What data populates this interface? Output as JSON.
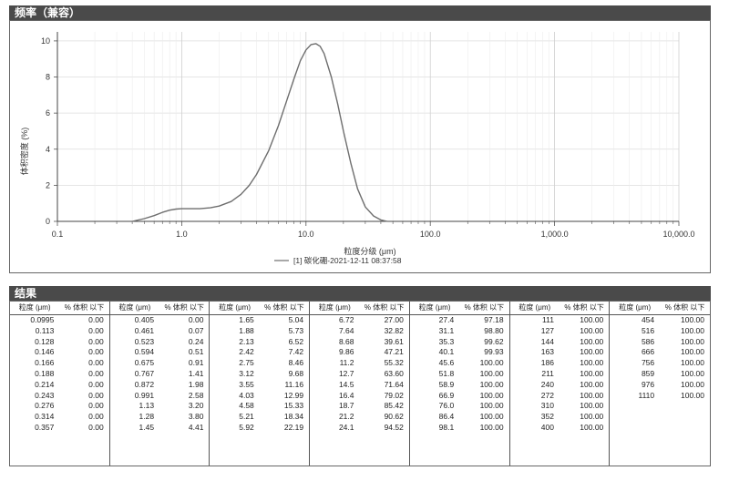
{
  "header_frequency": "频率（兼容）",
  "header_results": "结果",
  "chart_data": {
    "type": "line",
    "title": "",
    "xlabel": "粒度分级 (μm)",
    "ylabel": "体积密度 (%)",
    "xscale": "log",
    "xlim": [
      0.1,
      10000
    ],
    "ylim": [
      0,
      10.5
    ],
    "x_ticks": [
      "0.1",
      "1.0",
      "10.0",
      "100.0",
      "1,000.0",
      "10,000.0"
    ],
    "y_ticks": [
      "0",
      "2",
      "4",
      "6",
      "8",
      "10"
    ],
    "grid": true,
    "legend_position": "bottom-center",
    "series": [
      {
        "name": "[1] 碳化硼-2021-12-11 08:37:58",
        "color": "#6e6e6e",
        "x": [
          0.4,
          0.5,
          0.6,
          0.7,
          0.8,
          0.9,
          1.0,
          1.2,
          1.4,
          1.7,
          2.0,
          2.5,
          3.0,
          3.5,
          4.0,
          5.0,
          6.0,
          7.0,
          8.0,
          9.0,
          10.0,
          11.0,
          12.0,
          13.0,
          14.0,
          16.0,
          18.0,
          20.0,
          23.0,
          26.0,
          30.0,
          35.0,
          40.0,
          45.0
        ],
        "y": [
          0.0,
          0.15,
          0.32,
          0.5,
          0.62,
          0.68,
          0.7,
          0.7,
          0.7,
          0.75,
          0.85,
          1.1,
          1.5,
          2.0,
          2.6,
          3.9,
          5.3,
          6.7,
          7.9,
          8.9,
          9.5,
          9.8,
          9.85,
          9.7,
          9.3,
          8.0,
          6.5,
          5.0,
          3.2,
          1.8,
          0.8,
          0.3,
          0.08,
          0.0
        ]
      }
    ]
  },
  "table": {
    "col_header_size": "粒度 (μm)",
    "col_header_pct": "% 体积 以下",
    "columns": [
      [
        [
          "0.0995",
          "0.00"
        ],
        [
          "0.113",
          "0.00"
        ],
        [
          "0.128",
          "0.00"
        ],
        [
          "0.146",
          "0.00"
        ],
        [
          "0.166",
          "0.00"
        ],
        [
          "0.188",
          "0.00"
        ],
        [
          "0.214",
          "0.00"
        ],
        [
          "0.243",
          "0.00"
        ],
        [
          "0.276",
          "0.00"
        ],
        [
          "0.314",
          "0.00"
        ],
        [
          "0.357",
          "0.00"
        ]
      ],
      [
        [
          "0.405",
          "0.00"
        ],
        [
          "0.461",
          "0.07"
        ],
        [
          "0.523",
          "0.24"
        ],
        [
          "0.594",
          "0.51"
        ],
        [
          "0.675",
          "0.91"
        ],
        [
          "0.767",
          "1.41"
        ],
        [
          "0.872",
          "1.98"
        ],
        [
          "0.991",
          "2.58"
        ],
        [
          "1.13",
          "3.20"
        ],
        [
          "1.28",
          "3.80"
        ],
        [
          "1.45",
          "4.41"
        ]
      ],
      [
        [
          "1.65",
          "5.04"
        ],
        [
          "1.88",
          "5.73"
        ],
        [
          "2.13",
          "6.52"
        ],
        [
          "2.42",
          "7.42"
        ],
        [
          "2.75",
          "8.46"
        ],
        [
          "3.12",
          "9.68"
        ],
        [
          "3.55",
          "11.16"
        ],
        [
          "4.03",
          "12.99"
        ],
        [
          "4.58",
          "15.33"
        ],
        [
          "5.21",
          "18.34"
        ],
        [
          "5.92",
          "22.19"
        ]
      ],
      [
        [
          "6.72",
          "27.00"
        ],
        [
          "7.64",
          "32.82"
        ],
        [
          "8.68",
          "39.61"
        ],
        [
          "9.86",
          "47.21"
        ],
        [
          "11.2",
          "55.32"
        ],
        [
          "12.7",
          "63.60"
        ],
        [
          "14.5",
          "71.64"
        ],
        [
          "16.4",
          "79.02"
        ],
        [
          "18.7",
          "85.42"
        ],
        [
          "21.2",
          "90.62"
        ],
        [
          "24.1",
          "94.52"
        ]
      ],
      [
        [
          "27.4",
          "97.18"
        ],
        [
          "31.1",
          "98.80"
        ],
        [
          "35.3",
          "99.62"
        ],
        [
          "40.1",
          "99.93"
        ],
        [
          "45.6",
          "100.00"
        ],
        [
          "51.8",
          "100.00"
        ],
        [
          "58.9",
          "100.00"
        ],
        [
          "66.9",
          "100.00"
        ],
        [
          "76.0",
          "100.00"
        ],
        [
          "86.4",
          "100.00"
        ],
        [
          "98.1",
          "100.00"
        ]
      ],
      [
        [
          "111",
          "100.00"
        ],
        [
          "127",
          "100.00"
        ],
        [
          "144",
          "100.00"
        ],
        [
          "163",
          "100.00"
        ],
        [
          "186",
          "100.00"
        ],
        [
          "211",
          "100.00"
        ],
        [
          "240",
          "100.00"
        ],
        [
          "272",
          "100.00"
        ],
        [
          "310",
          "100.00"
        ],
        [
          "352",
          "100.00"
        ],
        [
          "400",
          "100.00"
        ]
      ],
      [
        [
          "454",
          "100.00"
        ],
        [
          "516",
          "100.00"
        ],
        [
          "586",
          "100.00"
        ],
        [
          "666",
          "100.00"
        ],
        [
          "756",
          "100.00"
        ],
        [
          "859",
          "100.00"
        ],
        [
          "976",
          "100.00"
        ],
        [
          "1110",
          "100.00"
        ]
      ]
    ]
  }
}
